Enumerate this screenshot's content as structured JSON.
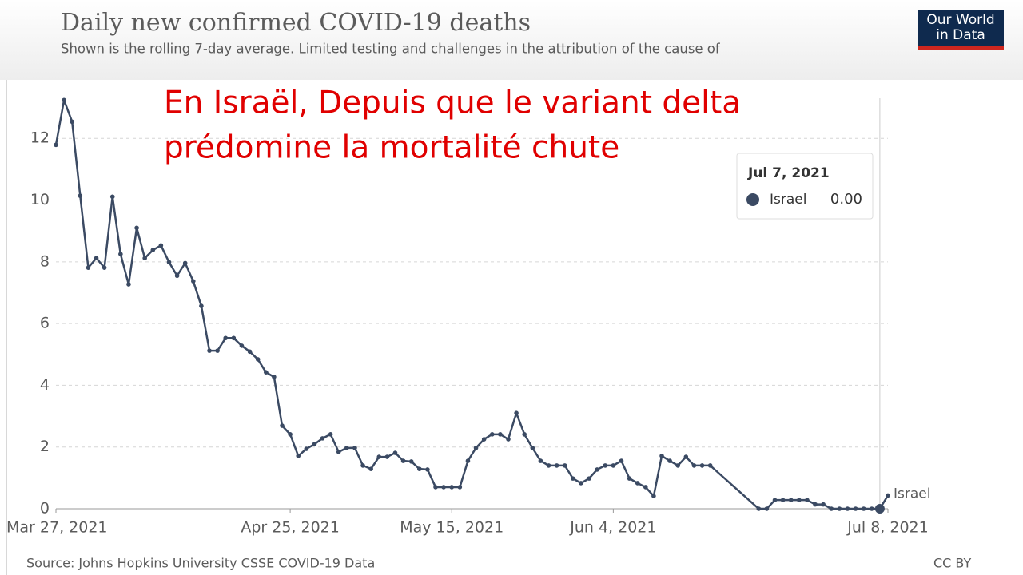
{
  "chart_data": {
    "type": "line",
    "title": "Daily new confirmed COVID-19 deaths",
    "subtitle": "Shown is the rolling 7-day average. Limited testing and challenges in the attribution of the cause of",
    "logo": [
      "Our World",
      "in Data"
    ],
    "annotation": [
      "En Israël, Depuis que le variant delta",
      "prédomine la mortalité chute"
    ],
    "source": "Source: Johns Hopkins University CSSE COVID-19 Data",
    "license": "CC BY",
    "xlim": [
      "Mar 27, 2021",
      "Jul 8, 2021"
    ],
    "xticks": [
      "Mar 27, 2021",
      "Apr 25, 2021",
      "May 15, 2021",
      "Jun 4, 2021",
      "Jul 8, 2021"
    ],
    "ylim": [
      0,
      13.3
    ],
    "yticks": [
      0,
      2,
      4,
      6,
      8,
      10,
      12
    ],
    "grid": true,
    "series": [
      {
        "name": "Israel",
        "color": "#3b4a63",
        "x": [
          "Mar 27, 2021",
          "Mar 28, 2021",
          "Mar 29, 2021",
          "Mar 30, 2021",
          "Mar 31, 2021",
          "Apr 1, 2021",
          "Apr 2, 2021",
          "Apr 3, 2021",
          "Apr 4, 2021",
          "Apr 5, 2021",
          "Apr 6, 2021",
          "Apr 7, 2021",
          "Apr 8, 2021",
          "Apr 9, 2021",
          "Apr 10, 2021",
          "Apr 11, 2021",
          "Apr 12, 2021",
          "Apr 13, 2021",
          "Apr 14, 2021",
          "Apr 15, 2021",
          "Apr 16, 2021",
          "Apr 17, 2021",
          "Apr 18, 2021",
          "Apr 19, 2021",
          "Apr 20, 2021",
          "Apr 21, 2021",
          "Apr 22, 2021",
          "Apr 23, 2021",
          "Apr 24, 2021",
          "Apr 25, 2021",
          "Apr 26, 2021",
          "Apr 27, 2021",
          "Apr 28, 2021",
          "Apr 29, 2021",
          "Apr 30, 2021",
          "May 1, 2021",
          "May 2, 2021",
          "May 3, 2021",
          "May 4, 2021",
          "May 5, 2021",
          "May 6, 2021",
          "May 7, 2021",
          "May 8, 2021",
          "May 9, 2021",
          "May 10, 2021",
          "May 11, 2021",
          "May 12, 2021",
          "May 13, 2021",
          "May 14, 2021",
          "May 15, 2021",
          "May 16, 2021",
          "May 17, 2021",
          "May 18, 2021",
          "May 19, 2021",
          "May 20, 2021",
          "May 21, 2021",
          "May 22, 2021",
          "May 23, 2021",
          "May 24, 2021",
          "May 25, 2021",
          "May 26, 2021",
          "May 27, 2021",
          "May 28, 2021",
          "May 29, 2021",
          "May 30, 2021",
          "May 31, 2021",
          "Jun 1, 2021",
          "Jun 2, 2021",
          "Jun 3, 2021",
          "Jun 4, 2021",
          "Jun 5, 2021",
          "Jun 6, 2021",
          "Jun 7, 2021",
          "Jun 8, 2021",
          "Jun 9, 2021",
          "Jun 10, 2021",
          "Jun 11, 2021",
          "Jun 12, 2021",
          "Jun 13, 2021",
          "Jun 14, 2021",
          "Jun 15, 2021",
          "Jun 16, 2021",
          "Jun 22, 2021",
          "Jun 23, 2021",
          "Jun 24, 2021",
          "Jun 25, 2021",
          "Jun 26, 2021",
          "Jun 27, 2021",
          "Jun 28, 2021",
          "Jun 29, 2021",
          "Jun 30, 2021",
          "Jul 1, 2021",
          "Jul 2, 2021",
          "Jul 3, 2021",
          "Jul 4, 2021",
          "Jul 5, 2021",
          "Jul 6, 2021",
          "Jul 7, 2021",
          "Jul 8, 2021"
        ],
        "values": [
          11.79,
          13.24,
          12.54,
          10.14,
          7.81,
          8.12,
          7.81,
          10.11,
          8.25,
          7.27,
          9.1,
          8.12,
          8.38,
          8.53,
          7.99,
          7.55,
          7.96,
          7.37,
          6.57,
          5.12,
          5.12,
          5.53,
          5.53,
          5.28,
          5.09,
          4.84,
          4.42,
          4.27,
          2.69,
          2.41,
          1.71,
          1.94,
          2.09,
          2.28,
          2.41,
          1.84,
          1.97,
          1.97,
          1.4,
          1.29,
          1.68,
          1.68,
          1.81,
          1.55,
          1.53,
          1.29,
          1.27,
          0.7,
          0.7,
          0.7,
          0.7,
          1.55,
          1.97,
          2.25,
          2.41,
          2.41,
          2.25,
          3.1,
          2.41,
          1.97,
          1.55,
          1.4,
          1.4,
          1.4,
          0.98,
          0.83,
          0.98,
          1.27,
          1.4,
          1.4,
          1.55,
          0.98,
          0.83,
          0.7,
          0.41,
          1.71,
          1.55,
          1.4,
          1.68,
          1.4,
          1.4,
          1.4,
          0,
          0,
          0.28,
          0.28,
          0.28,
          0.28,
          0.28,
          0.14,
          0.14,
          0,
          0,
          0,
          0,
          0,
          0,
          0,
          0.43
        ]
      }
    ],
    "tooltip": {
      "x": "Jul 7, 2021",
      "value": 0,
      "value_label": "0.00"
    }
  }
}
